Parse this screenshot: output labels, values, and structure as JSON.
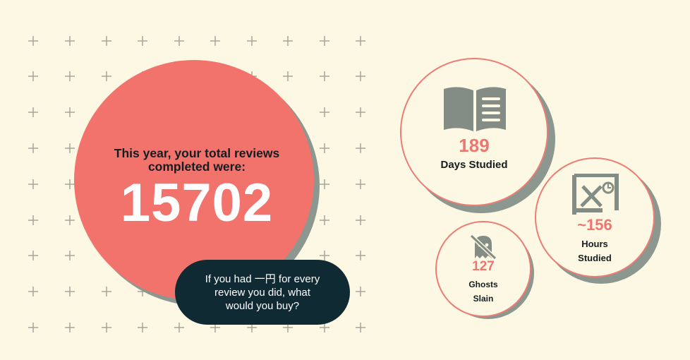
{
  "main": {
    "headline_line1": "This year, your total reviews",
    "headline_line2": "completed were:",
    "total_reviews": "15702",
    "bubble_line1": "If you had 一円 for every",
    "bubble_line2": "review you did, what",
    "bubble_line3": "would you buy?"
  },
  "stats": [
    {
      "value": "189",
      "label": "Days Studied",
      "icon": "open-book-icon"
    },
    {
      "value": "~156",
      "label_line1": "Hours",
      "label_line2": "Studied",
      "icon": "kanji-clock-icon"
    },
    {
      "value": "127",
      "label_line1": "Ghosts",
      "label_line2": "Slain",
      "icon": "ghost-slash-icon"
    }
  ],
  "colors": {
    "background": "#fdf8e3",
    "accent": "#f2736b",
    "accent_text": "#ec7670",
    "shadow": "#8c978f",
    "bubble": "#0f2a33",
    "icon_gray": "#838d85"
  }
}
